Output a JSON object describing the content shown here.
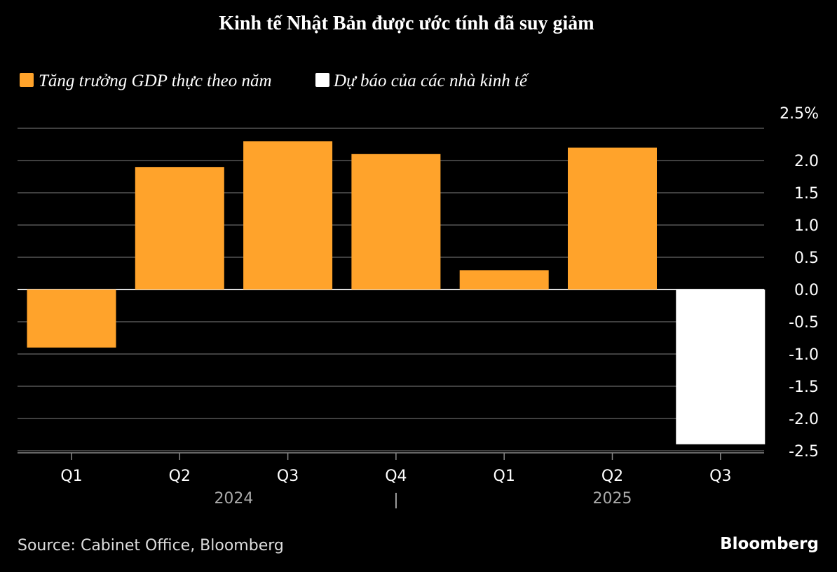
{
  "chart_data": {
    "type": "bar",
    "title": "Kinh tế Nhật Bản được ước tính đã suy giảm",
    "categories": [
      "Q1",
      "Q2",
      "Q3",
      "Q4",
      "Q1",
      "Q2",
      "Q3"
    ],
    "year_groups": [
      {
        "label": "2024",
        "categories": [
          0,
          1,
          2,
          3
        ]
      },
      {
        "label": "2025",
        "categories": [
          4,
          5,
          6
        ]
      }
    ],
    "year_separator": "|",
    "series": [
      {
        "name": "Tăng trưởng GDP thực theo năm",
        "color": "#FFA32B",
        "values": [
          -0.9,
          1.9,
          2.3,
          2.1,
          0.3,
          2.2,
          null
        ]
      },
      {
        "name": "Dự báo của các nhà kinh tế",
        "color": "#FFFFFF",
        "values": [
          null,
          null,
          null,
          null,
          null,
          null,
          -2.4
        ]
      }
    ],
    "ylim": [
      -2.5,
      2.5
    ],
    "yticks": [
      2.5,
      2.0,
      1.5,
      1.0,
      0.5,
      0.0,
      -0.5,
      -1.0,
      -1.5,
      -2.0,
      -2.5
    ],
    "ytick_labels": [
      "2.5%",
      "2.0",
      "1.5",
      "1.0",
      "0.5",
      "0.0",
      "-0.5",
      "-1.0",
      "-1.5",
      "-2.0",
      "-2.5"
    ],
    "legend_position": "top-left",
    "grid": true,
    "source": "Source: Cabinet Office, Bloomberg",
    "brand": "Bloomberg"
  }
}
